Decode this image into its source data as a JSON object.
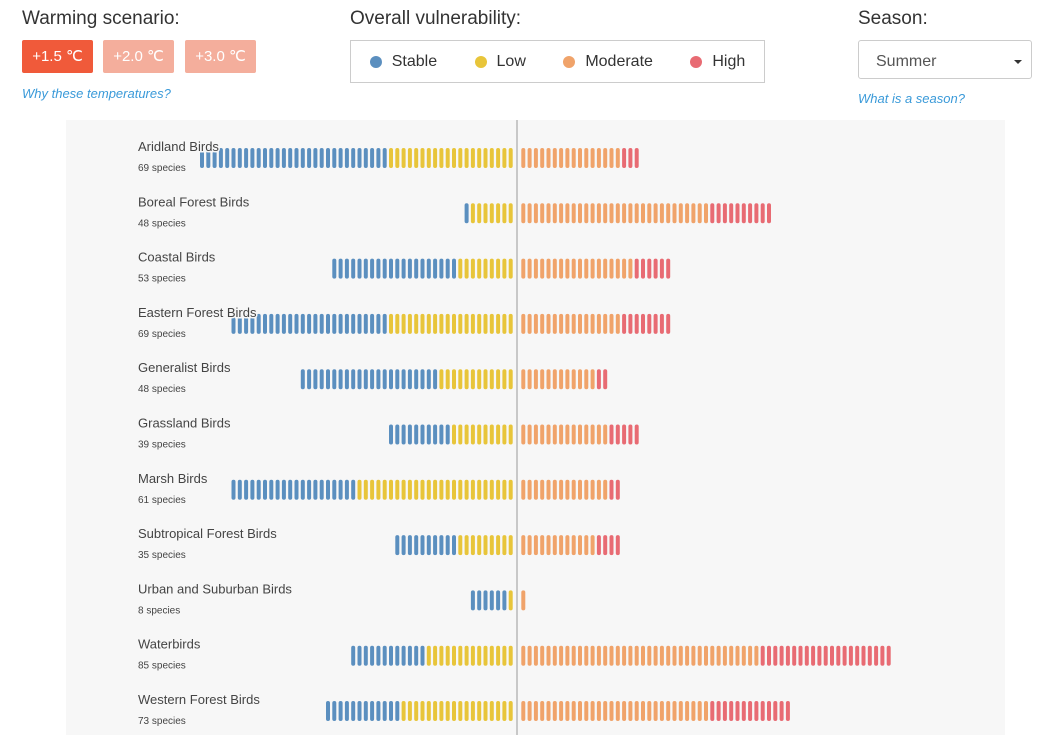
{
  "controls": {
    "warming_label": "Warming scenario:",
    "scenarios": [
      "+1.5 ℃",
      "+2.0 ℃",
      "+3.0 ℃"
    ],
    "why_link": "Why these temperatures?",
    "vulnerability_label": "Overall vulnerability:",
    "legend": [
      {
        "name": "Stable",
        "color": "#5b8fbf"
      },
      {
        "name": "Low",
        "color": "#e8c53a"
      },
      {
        "name": "Moderate",
        "color": "#f0a36a"
      },
      {
        "name": "High",
        "color": "#e86b73"
      }
    ],
    "season_label": "Season:",
    "season": "Summer",
    "season_link": "What is a season?"
  },
  "groups": [
    {
      "name": "Aridland Birds",
      "species": "69 species",
      "counts": [
        30,
        20,
        16,
        3
      ]
    },
    {
      "name": "Boreal Forest Birds",
      "species": "48 species",
      "counts": [
        1,
        7,
        30,
        10
      ]
    },
    {
      "name": "Coastal Birds",
      "species": "53 species",
      "counts": [
        20,
        9,
        18,
        6
      ]
    },
    {
      "name": "Eastern Forest Birds",
      "species": "69 species",
      "counts": [
        25,
        20,
        16,
        8
      ]
    },
    {
      "name": "Generalist Birds",
      "species": "48 species",
      "counts": [
        22,
        12,
        12,
        2
      ]
    },
    {
      "name": "Grassland Birds",
      "species": "39 species",
      "counts": [
        10,
        10,
        14,
        5
      ]
    },
    {
      "name": "Marsh Birds",
      "species": "61 species",
      "counts": [
        20,
        25,
        14,
        2
      ]
    },
    {
      "name": "Subtropical Forest Birds",
      "species": "35 species",
      "counts": [
        10,
        9,
        12,
        4
      ]
    },
    {
      "name": "Urban and Suburban Birds",
      "species": "8 species",
      "counts": [
        6,
        1,
        1,
        0
      ]
    },
    {
      "name": "Waterbirds",
      "species": "85 species",
      "counts": [
        12,
        14,
        38,
        21
      ]
    },
    {
      "name": "Western Forest Birds",
      "species": "73 species",
      "counts": [
        12,
        18,
        30,
        13
      ]
    }
  ]
}
